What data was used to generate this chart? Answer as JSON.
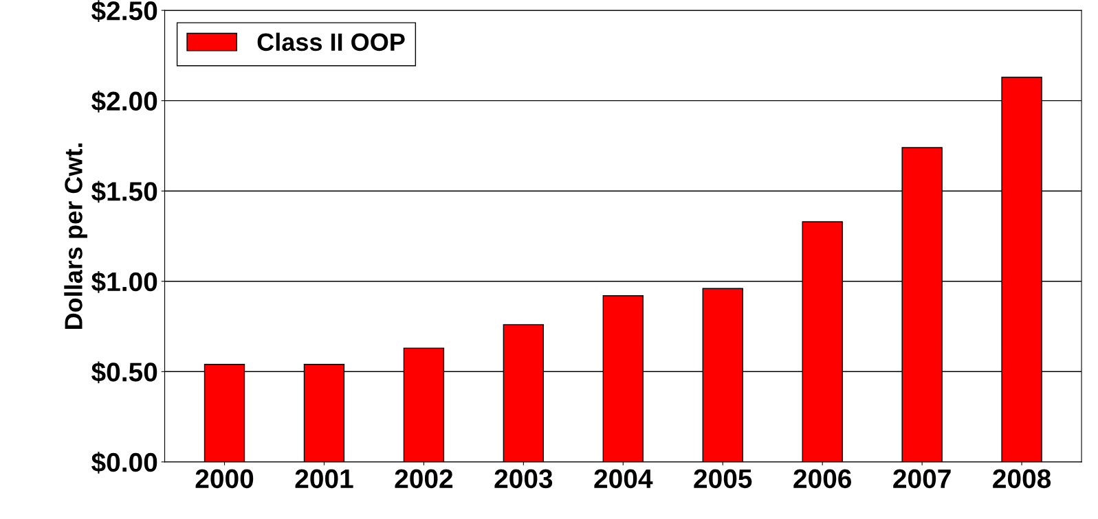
{
  "chart_data": {
    "type": "bar",
    "ylabel": "Dollars per Cwt.",
    "categories": [
      "2000",
      "2001",
      "2002",
      "2003",
      "2004",
      "2005",
      "2006",
      "2007",
      "2008"
    ],
    "series": [
      {
        "name": "Class II OOP",
        "color": "#ff0000",
        "values": [
          0.54,
          0.54,
          0.63,
          0.76,
          0.92,
          0.96,
          1.33,
          1.74,
          2.13
        ]
      }
    ],
    "ylim": [
      0,
      2.5
    ],
    "yticks": [
      {
        "value": 0,
        "label": "$0.00"
      },
      {
        "value": 0.5,
        "label": "$0.50"
      },
      {
        "value": 1,
        "label": "$1.00"
      },
      {
        "value": 1.5,
        "label": "$1.50"
      },
      {
        "value": 2,
        "label": "$2.00"
      },
      {
        "value": 2.5,
        "label": "$2.50"
      }
    ],
    "grid": "y",
    "legend": "top left"
  }
}
